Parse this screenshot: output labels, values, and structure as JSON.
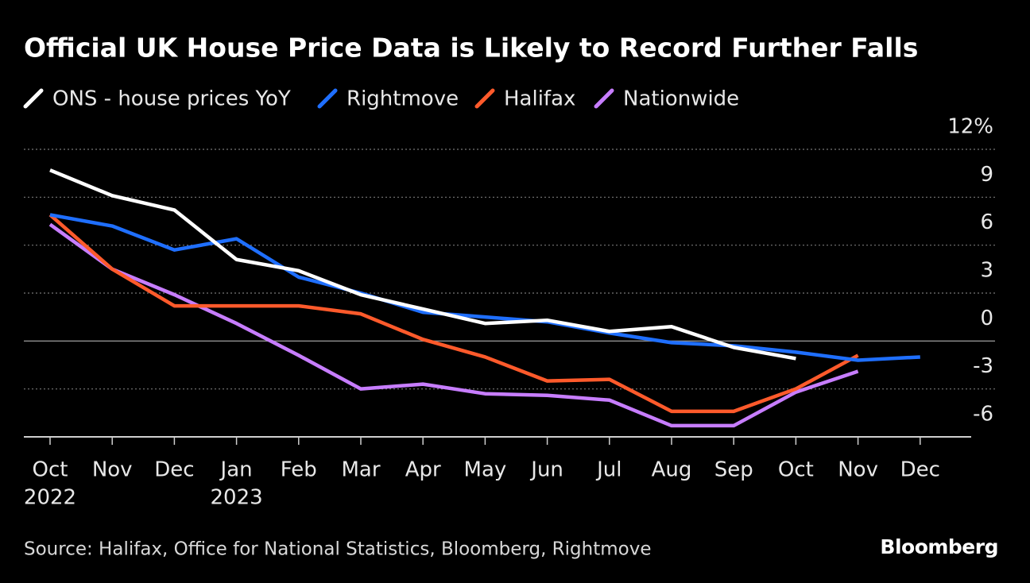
{
  "chart_data": {
    "type": "line",
    "title": "Official UK House Price Data is Likely to Record Further Falls",
    "source": "Source: Halifax, Office for National Statistics, Bloomberg, Rightmove",
    "brand": "Bloomberg",
    "categories": [
      "Oct",
      "Nov",
      "Dec",
      "Jan",
      "Feb",
      "Mar",
      "Apr",
      "May",
      "Jun",
      "Jul",
      "Aug",
      "Sep",
      "Oct",
      "Nov",
      "Dec"
    ],
    "category_years": [
      "2022",
      null,
      null,
      "2023",
      null,
      null,
      null,
      null,
      null,
      null,
      null,
      null,
      null,
      null,
      null
    ],
    "ylim": [
      -6,
      12
    ],
    "yticks": [
      -6,
      -3,
      0,
      3,
      6,
      9,
      {
        "value": 12,
        "label": "12%"
      }
    ],
    "grid": true,
    "series": [
      {
        "name": "ONS - house prices YoY",
        "color": "#ffffff",
        "values": [
          10.7,
          9.1,
          8.2,
          5.1,
          4.4,
          2.9,
          2.0,
          1.1,
          1.3,
          0.6,
          0.9,
          -0.4,
          -1.1,
          null,
          null
        ]
      },
      {
        "name": "Rightmove",
        "color": "#1f6fff",
        "values": [
          7.9,
          7.2,
          5.7,
          6.4,
          4.0,
          3.0,
          1.8,
          1.5,
          1.2,
          0.5,
          -0.1,
          -0.3,
          -0.7,
          -1.2,
          -1.0
        ]
      },
      {
        "name": "Halifax",
        "color": "#ff5a2b",
        "values": [
          7.9,
          4.5,
          2.2,
          2.2,
          2.2,
          1.7,
          0.1,
          -1.0,
          -2.5,
          -2.4,
          -4.4,
          -4.4,
          -3.0,
          -0.9,
          null
        ]
      },
      {
        "name": "Nationwide",
        "color": "#c77dff",
        "values": [
          7.3,
          4.5,
          2.9,
          1.1,
          -0.9,
          -3.0,
          -2.7,
          -3.3,
          -3.4,
          -3.7,
          -5.3,
          -5.3,
          -3.2,
          -1.9,
          null
        ]
      }
    ]
  }
}
